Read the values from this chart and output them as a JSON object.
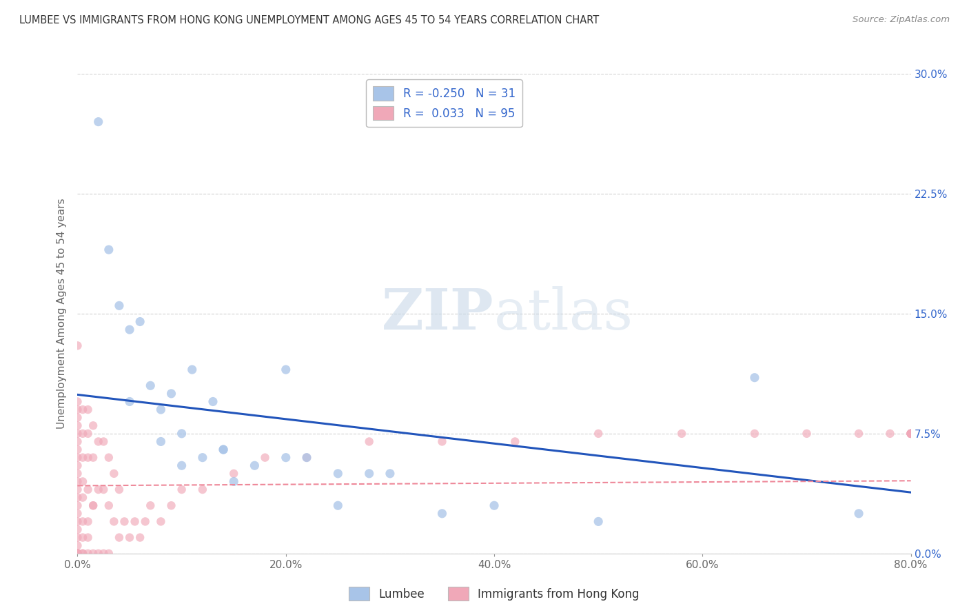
{
  "title": "LUMBEE VS IMMIGRANTS FROM HONG KONG UNEMPLOYMENT AMONG AGES 45 TO 54 YEARS CORRELATION CHART",
  "source": "Source: ZipAtlas.com",
  "ylabel": "Unemployment Among Ages 45 to 54 years",
  "xlim": [
    0.0,
    0.8
  ],
  "ylim": [
    0.0,
    0.3
  ],
  "lumbee_R": -0.25,
  "lumbee_N": 31,
  "hk_R": 0.033,
  "hk_N": 95,
  "lumbee_color": "#a8c4e8",
  "hk_color": "#f0a8b8",
  "lumbee_line_color": "#2255bb",
  "hk_line_color": "#ee8899",
  "lumbee_scatter_x": [
    0.02,
    0.03,
    0.04,
    0.05,
    0.06,
    0.07,
    0.08,
    0.09,
    0.1,
    0.11,
    0.12,
    0.13,
    0.14,
    0.15,
    0.17,
    0.2,
    0.22,
    0.25,
    0.28,
    0.3,
    0.35,
    0.4,
    0.5,
    0.65,
    0.75,
    0.05,
    0.08,
    0.1,
    0.14,
    0.2,
    0.25
  ],
  "lumbee_scatter_y": [
    0.27,
    0.19,
    0.155,
    0.14,
    0.145,
    0.105,
    0.09,
    0.1,
    0.075,
    0.115,
    0.06,
    0.095,
    0.065,
    0.045,
    0.055,
    0.115,
    0.06,
    0.03,
    0.05,
    0.05,
    0.025,
    0.03,
    0.02,
    0.11,
    0.025,
    0.095,
    0.07,
    0.055,
    0.065,
    0.06,
    0.05
  ],
  "hk_scatter_x": [
    0.0,
    0.0,
    0.0,
    0.0,
    0.0,
    0.0,
    0.0,
    0.0,
    0.0,
    0.0,
    0.0,
    0.0,
    0.0,
    0.0,
    0.0,
    0.0,
    0.0,
    0.0,
    0.0,
    0.0,
    0.0,
    0.0,
    0.0,
    0.0,
    0.0,
    0.0,
    0.0,
    0.0,
    0.0,
    0.0,
    0.005,
    0.005,
    0.005,
    0.005,
    0.005,
    0.005,
    0.005,
    0.005,
    0.005,
    0.01,
    0.01,
    0.01,
    0.01,
    0.01,
    0.01,
    0.01,
    0.015,
    0.015,
    0.015,
    0.015,
    0.015,
    0.02,
    0.02,
    0.02,
    0.025,
    0.025,
    0.025,
    0.03,
    0.03,
    0.03,
    0.035,
    0.035,
    0.04,
    0.04,
    0.045,
    0.05,
    0.055,
    0.06,
    0.065,
    0.07,
    0.08,
    0.09,
    0.1,
    0.12,
    0.15,
    0.18,
    0.22,
    0.28,
    0.35,
    0.42,
    0.5,
    0.58,
    0.65,
    0.7,
    0.75,
    0.78,
    0.8,
    0.8,
    0.8,
    0.8,
    0.8,
    0.8,
    0.8,
    0.8,
    0.8
  ],
  "hk_scatter_y": [
    0.0,
    0.0,
    0.0,
    0.0,
    0.0,
    0.0,
    0.0,
    0.0,
    0.0,
    0.0,
    0.005,
    0.01,
    0.015,
    0.02,
    0.025,
    0.03,
    0.035,
    0.04,
    0.045,
    0.05,
    0.055,
    0.06,
    0.065,
    0.07,
    0.075,
    0.08,
    0.085,
    0.09,
    0.095,
    0.13,
    0.0,
    0.0,
    0.01,
    0.02,
    0.035,
    0.045,
    0.06,
    0.075,
    0.09,
    0.0,
    0.02,
    0.04,
    0.06,
    0.075,
    0.09,
    0.01,
    0.0,
    0.03,
    0.06,
    0.08,
    0.03,
    0.0,
    0.04,
    0.07,
    0.0,
    0.04,
    0.07,
    0.0,
    0.03,
    0.06,
    0.02,
    0.05,
    0.01,
    0.04,
    0.02,
    0.01,
    0.02,
    0.01,
    0.02,
    0.03,
    0.02,
    0.03,
    0.04,
    0.04,
    0.05,
    0.06,
    0.06,
    0.07,
    0.07,
    0.07,
    0.075,
    0.075,
    0.075,
    0.075,
    0.075,
    0.075,
    0.075,
    0.075,
    0.075,
    0.075,
    0.075,
    0.075,
    0.075,
    0.075,
    0.075
  ],
  "x_tick_vals": [
    0.0,
    0.2,
    0.4,
    0.6,
    0.8
  ],
  "x_tick_labels": [
    "0.0%",
    "20.0%",
    "40.0%",
    "60.0%",
    "80.0%"
  ],
  "y_tick_vals": [
    0.0,
    0.075,
    0.15,
    0.225,
    0.3
  ],
  "y_tick_labels": [
    "0.0%",
    "7.5%",
    "15.0%",
    "22.5%",
    "30.0%"
  ],
  "watermark_zip": "ZIP",
  "watermark_atlas": "atlas",
  "background_color": "#ffffff",
  "grid_color": "#cccccc",
  "title_color": "#333333",
  "source_color": "#888888",
  "ylabel_color": "#666666",
  "tick_label_color": "#3366cc",
  "bottom_tick_color": "#666666"
}
